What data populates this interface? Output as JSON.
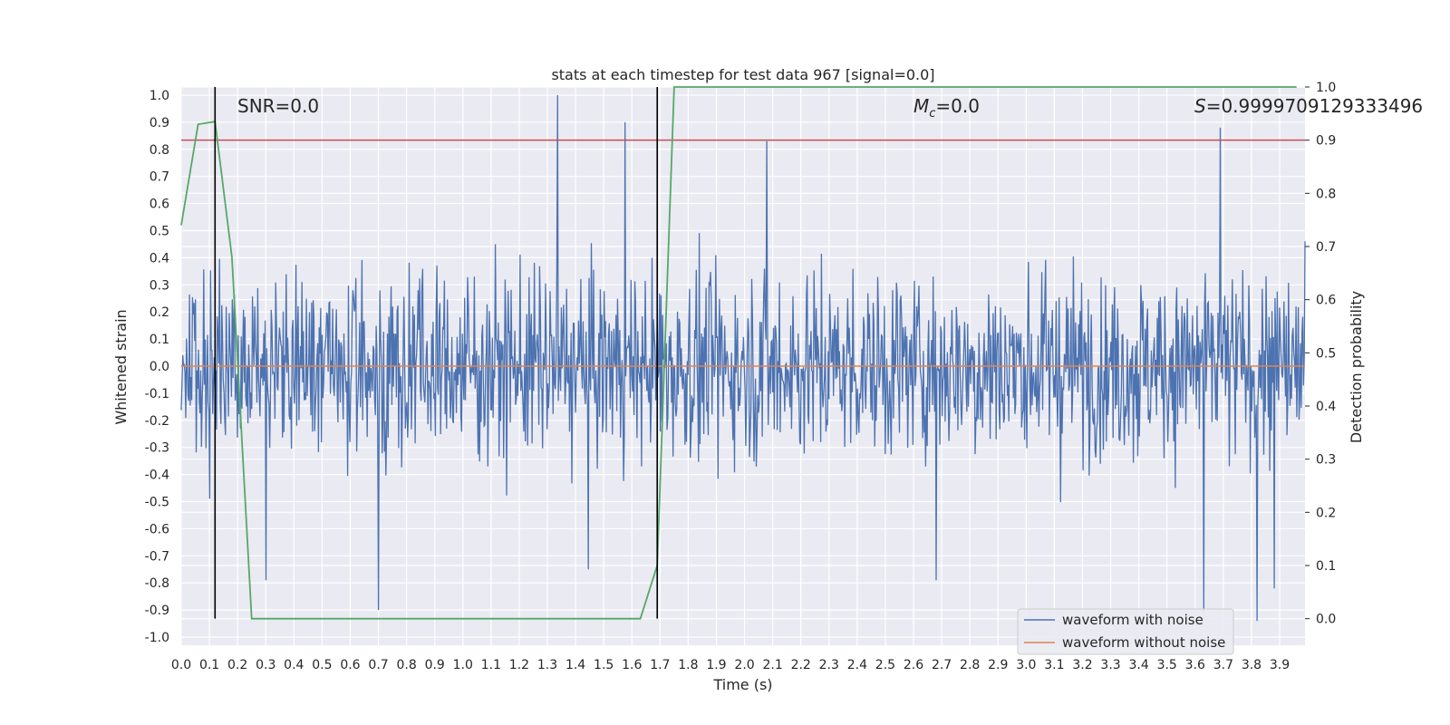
{
  "chart_data": {
    "type": "line",
    "title": "stats at each timestep for test data 967 [signal=0.0]",
    "xlabel": "Time (s)",
    "ylabel": "Whitened strain",
    "y2label": "Detection probability",
    "xlim": [
      0.0,
      3.99
    ],
    "ylim": [
      -1.03,
      1.03
    ],
    "y2lim": [
      -0.05,
      1.0
    ],
    "x_ticks": [
      "0.0",
      "0.1",
      "0.2",
      "0.3",
      "0.4",
      "0.5",
      "0.6",
      "0.7",
      "0.8",
      "0.9",
      "1.0",
      "1.1",
      "1.2",
      "1.3",
      "1.4",
      "1.5",
      "1.6",
      "1.7",
      "1.8",
      "1.9",
      "2.0",
      "2.1",
      "2.2",
      "2.3",
      "2.4",
      "2.5",
      "2.6",
      "2.7",
      "2.8",
      "2.9",
      "3.0",
      "3.1",
      "3.2",
      "3.3",
      "3.4",
      "3.5",
      "3.6",
      "3.7",
      "3.8",
      "3.9"
    ],
    "y_ticks": [
      "1.0",
      "0.9",
      "0.8",
      "0.7",
      "0.6",
      "0.5",
      "0.4",
      "0.3",
      "0.2",
      "0.1",
      "0.0",
      "-0.1",
      "-0.2",
      "-0.3",
      "-0.4",
      "-0.5",
      "-0.6",
      "-0.7",
      "-0.8",
      "-0.9",
      "-1.0"
    ],
    "y2_ticks": [
      "0.0",
      "0.1",
      "0.2",
      "0.3",
      "0.4",
      "0.5",
      "0.6",
      "0.7",
      "0.8",
      "0.9",
      "1.0"
    ],
    "grid": true,
    "legend": "lower-right",
    "series": [
      {
        "name": "waveform with noise",
        "color": "#4c72b0",
        "peaks": [
          {
            "x": 1.335,
            "y": 1.0
          },
          {
            "x": 1.575,
            "y": 0.9
          },
          {
            "x": 2.08,
            "y": 0.83
          },
          {
            "x": 3.69,
            "y": 0.88
          },
          {
            "x": 0.7,
            "y": -0.9
          },
          {
            "x": 1.445,
            "y": -0.75
          },
          {
            "x": 3.63,
            "y": -0.91
          },
          {
            "x": 3.82,
            "y": -0.94
          },
          {
            "x": 0.3,
            "y": -0.79
          },
          {
            "x": 2.68,
            "y": -0.79
          },
          {
            "x": 3.88,
            "y": -0.82
          }
        ],
        "typical_range": [
          -0.45,
          0.45
        ]
      },
      {
        "name": "waveform without noise",
        "color": "#dd8452",
        "value": 0.0
      }
    ],
    "detection_probability": {
      "color": "#55a868",
      "x": [
        0.0,
        0.06,
        0.12,
        0.18,
        0.25,
        1.63,
        1.69,
        1.75,
        3.96
      ],
      "y": [
        0.74,
        0.93,
        0.935,
        0.68,
        0.0,
        0.0,
        0.1,
        1.0,
        1.0
      ]
    },
    "threshold": {
      "value": 0.9,
      "color": "#c44e52"
    },
    "vertical_markers": {
      "x": [
        0.12,
        1.69
      ],
      "color": "#000000"
    },
    "annotations": [
      {
        "text": "SNR=0.0"
      },
      {
        "text": "M_c=0.0",
        "main": "M",
        "sub": "c",
        "rest": "=0.0"
      },
      {
        "text": "S=0.9999709129333496",
        "main": "S",
        "rest": "=0.9999709129333496"
      }
    ]
  }
}
